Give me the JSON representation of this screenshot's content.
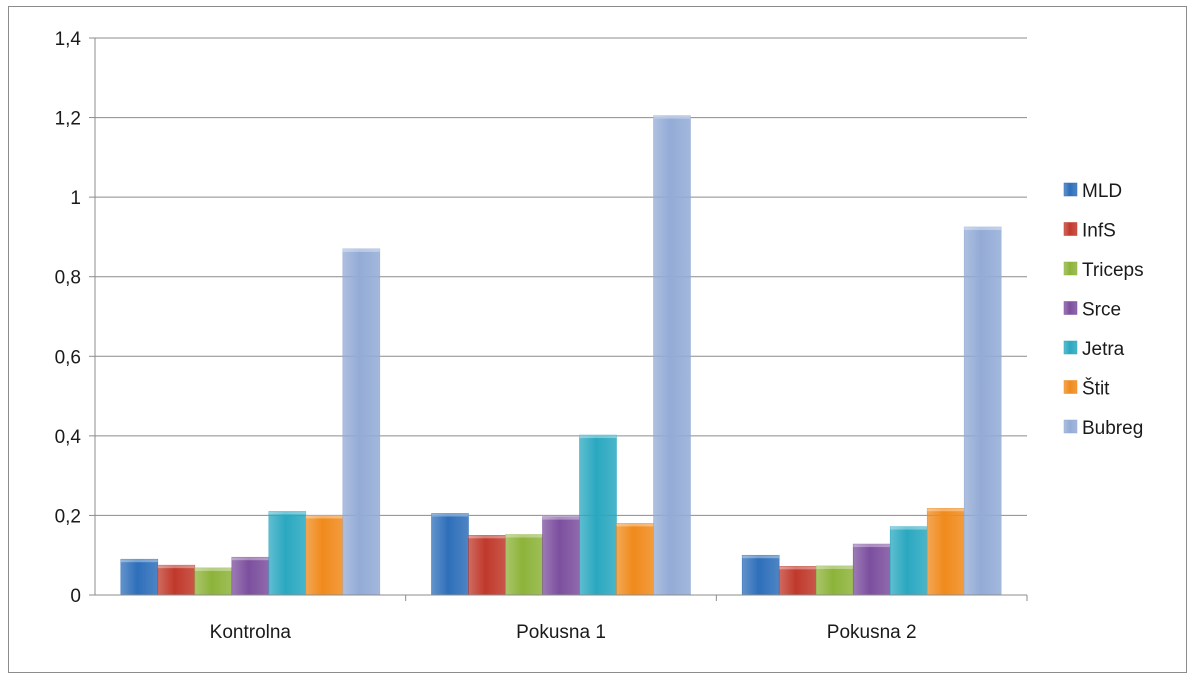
{
  "chart_data": {
    "type": "bar",
    "categories": [
      "Kontrolna",
      "Pokusna 1",
      "Pokusna 2"
    ],
    "series": [
      {
        "name": "MLD",
        "values": [
          0.09,
          0.205,
          0.1
        ],
        "color": "#2e6fba"
      },
      {
        "name": "InfS",
        "values": [
          0.075,
          0.15,
          0.072
        ],
        "color": "#c0392b"
      },
      {
        "name": "Triceps",
        "values": [
          0.068,
          0.152,
          0.073
        ],
        "color": "#8db33a"
      },
      {
        "name": "Srce",
        "values": [
          0.095,
          0.197,
          0.128
        ],
        "color": "#7c4f9e"
      },
      {
        "name": "Jetra",
        "values": [
          0.21,
          0.402,
          0.172
        ],
        "color": "#2aa8c0"
      },
      {
        "name": "Štit",
        "values": [
          0.2,
          0.18,
          0.218
        ],
        "color": "#f08a1c"
      },
      {
        "name": "Bubreg",
        "values": [
          0.87,
          1.205,
          0.925
        ],
        "color": "#93abd6"
      }
    ],
    "yticks": [
      "0",
      "0,2",
      "0,4",
      "0,6",
      "0,8",
      "1",
      "1,2",
      "1,4"
    ],
    "ylim": [
      0,
      1.4
    ],
    "grid": true,
    "legend_position": "right"
  }
}
